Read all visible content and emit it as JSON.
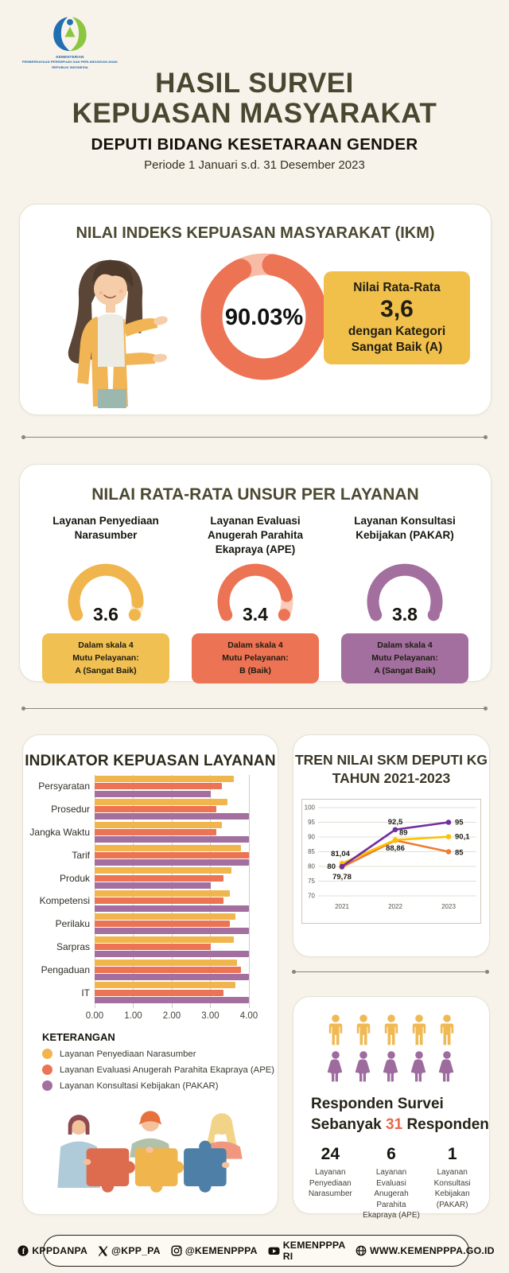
{
  "page": {
    "bg": "#F7F3EA"
  },
  "header": {
    "ministry_lines": [
      "KEMENTERIAN",
      "PEMBERDAYAAN PEREMPUAN DAN PERLINDUNGAN ANAK",
      "REPUBLIK INDONESIA"
    ],
    "title_line1": "HASIL SURVEI",
    "title_line2": "KEPUASAN MASYARAKAT",
    "subtitle": "DEPUTI BIDANG KESETARAAN GENDER",
    "period": "Periode 1 Januari s.d. 31 Desember 2023"
  },
  "ikm_card": {
    "title": "NILAI INDEKS KEPUASAN MASYARAKAT (IKM)",
    "donut": {
      "percent": 90.03,
      "label": "90.03%",
      "color": "#EC7353",
      "track_color": "#F8BBA6"
    },
    "score_box": {
      "bg": "#F1C04B",
      "line1": "Nilai Rata-Rata",
      "value": "3,6",
      "line2": "dengan Kategori",
      "line3": "Sangat Baik (A)"
    }
  },
  "unsur_card": {
    "title": "NILAI RATA-RATA UNSUR PER LAYANAN",
    "gauges": [
      {
        "title_lines": [
          "Layanan Penyediaan",
          "Narasumber"
        ],
        "value": 3.6,
        "max": 4,
        "value_label": "3.6",
        "color": "#F0B54D",
        "track_color": "#FAE8C8",
        "box": {
          "bg": "#F0C052",
          "line1": "Dalam skala 4",
          "line2": "Mutu Pelayanan:",
          "line3": "A (Sangat Baik)"
        }
      },
      {
        "title_lines": [
          "Layanan Evaluasi",
          "Anugerah Parahita",
          "Ekapraya (APE)"
        ],
        "value": 3.4,
        "max": 4,
        "value_label": "3.4",
        "color": "#EC7353",
        "track_color": "#FACBB9",
        "box": {
          "bg": "#EC7353",
          "line1": "Dalam skala 4",
          "line2": "Mutu Pelayanan:",
          "line3": "B (Baik)"
        }
      },
      {
        "title_lines": [
          "Layanan Konsultasi",
          "Kebijakan (PAKAR)"
        ],
        "value": 3.8,
        "max": 4,
        "value_label": "3.8",
        "color": "#A36F9F",
        "track_color": "#F6D9EF",
        "box": {
          "bg": "#A36F9F",
          "line1": "Dalam skala 4",
          "line2": "Mutu Pelayanan:",
          "line3": "A (Sangat Baik)"
        }
      }
    ]
  },
  "indikator_card": {
    "title": "INDIKATOR KEPUASAN LAYANAN",
    "keterangan_label": "KETERANGAN"
  },
  "tren_card": {
    "title_line1": "TREN NILAI SKM DEPUTI KG",
    "title_line2": "TAHUN 2021-2023"
  },
  "responden_card": {
    "icon_rows": [
      {
        "gender": "male",
        "count": 5,
        "color": "#F0B954"
      },
      {
        "gender": "female",
        "count": 5,
        "color": "#9E6B9E"
      }
    ],
    "line1": "Responden Survei",
    "line2_pre": "Sebanyak",
    "count": "31",
    "count_color": "#E8694A",
    "line2_post": "Responden",
    "columns": [
      {
        "value": "24",
        "label_lines": [
          "Layanan",
          "Penyediaan",
          "Narasumber"
        ]
      },
      {
        "value": "6",
        "label_lines": [
          "Layanan Evaluasi",
          "Anugerah Parahita",
          "Ekapraya (APE)"
        ]
      },
      {
        "value": "1",
        "label_lines": [
          "Layanan",
          "Konsultasi",
          "Kebijakan (PAKAR)"
        ]
      }
    ]
  },
  "footer": {
    "items": [
      {
        "icon": "facebook-icon",
        "label": "KPPDANPA"
      },
      {
        "icon": "x-icon",
        "label": "@KPP_PA"
      },
      {
        "icon": "instagram-icon",
        "label": "@KEMENPPPA"
      },
      {
        "icon": "youtube-icon",
        "label": "KEMENPPPA RI"
      },
      {
        "icon": "globe-icon",
        "label": "WWW.KEMENPPPA.GO.ID"
      }
    ]
  },
  "chart_data": [
    {
      "type": "bar",
      "orientation": "horizontal",
      "title": "INDIKATOR KEPUASAN LAYANAN",
      "categories": [
        "Persyaratan",
        "Prosedur",
        "Jangka Waktu",
        "Tarif",
        "Produk",
        "Kompetensi",
        "Perilaku",
        "Sarpras",
        "Pengaduan",
        "IT"
      ],
      "series": [
        {
          "name": "Layanan Penyediaan Narasumber",
          "color": "#F0B54D",
          "values": [
            3.6,
            3.45,
            3.3,
            3.8,
            3.55,
            3.5,
            3.65,
            3.6,
            3.7,
            3.65
          ]
        },
        {
          "name": "Layanan Evaluasi Anugerah Parahita Ekapraya (APE)",
          "color": "#EC7353",
          "values": [
            3.3,
            3.15,
            3.15,
            4,
            3.35,
            3.35,
            3.5,
            3,
            3.8,
            3.35
          ]
        },
        {
          "name": "Layanan Konsultasi Kebijakan (PAKAR)",
          "color": "#A36F9F",
          "values": [
            3,
            4,
            4,
            4,
            3,
            4,
            4,
            4,
            4,
            4
          ]
        }
      ],
      "xlim": [
        0,
        4
      ],
      "xticks": [
        "0.00",
        "1.00",
        "2.00",
        "3.00",
        "4.00"
      ],
      "grid": true,
      "legend_position": "bottom"
    },
    {
      "type": "line",
      "title": "TREN NILAI SKM DEPUTI KG TAHUN 2021-2023",
      "x": [
        "2021",
        "2022",
        "2023"
      ],
      "ylim": [
        70,
        100
      ],
      "yticks": [
        100,
        95,
        90,
        85,
        80,
        75,
        70
      ],
      "series": [
        {
          "name": "ungu",
          "color": "#7030A0",
          "values": [
            80,
            92.5,
            95
          ],
          "labels": [
            "80",
            "92,5",
            "95"
          ]
        },
        {
          "name": "kuning",
          "color": "#FFC000",
          "values": [
            81.04,
            89,
            90.1
          ],
          "labels": [
            "81,04",
            "89",
            "90,1"
          ]
        },
        {
          "name": "oranye",
          "color": "#ED7D31",
          "values": [
            79.78,
            88.86,
            85
          ],
          "labels": [
            "79,78",
            "88,86",
            "85"
          ]
        }
      ],
      "grid": true,
      "legend_position": "none"
    }
  ]
}
